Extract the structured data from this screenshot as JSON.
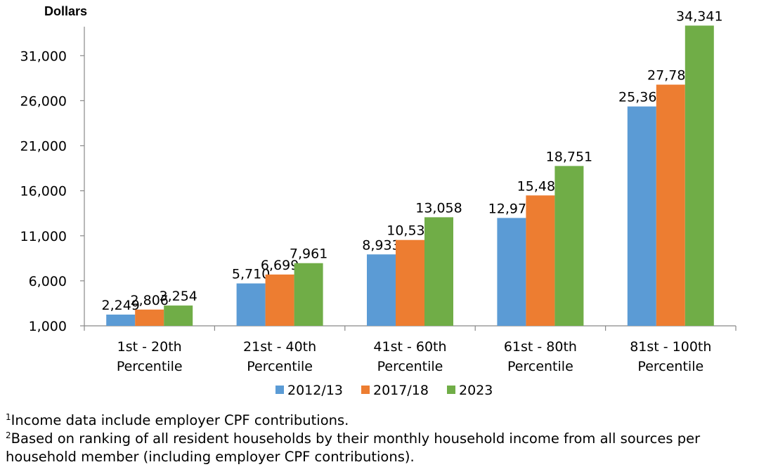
{
  "chart_data": {
    "type": "bar",
    "ylabel": "Dollars",
    "categories": [
      [
        "1st - 20th",
        "Percentile"
      ],
      [
        "21st - 40th",
        "Percentile"
      ],
      [
        "41st - 60th",
        "Percentile"
      ],
      [
        "61st - 80th",
        "Percentile"
      ],
      [
        "81st - 100th",
        "Percentile"
      ]
    ],
    "series": [
      {
        "name": "2012/13",
        "color": "#5b9bd5",
        "values": [
          2249,
          5710,
          8933,
          12979,
          25361
        ]
      },
      {
        "name": "2017/18",
        "color": "#ed7d31",
        "values": [
          2806,
          6699,
          10534,
          15482,
          27784
        ]
      },
      {
        "name": "2023",
        "color": "#70ad47",
        "values": [
          3254,
          7961,
          13058,
          18751,
          34341
        ]
      }
    ],
    "ylim": [
      1000,
      35000
    ],
    "yticks": [
      1000,
      6000,
      11000,
      16000,
      21000,
      26000,
      31000
    ],
    "grid": false,
    "legend": "bottom"
  },
  "notes": {
    "note1_marker": "1",
    "note1_text": "Income data include employer CPF contributions.",
    "note2_marker": "2",
    "note2_text": "Based on ranking of all resident households by their monthly household income from all sources per household member (including employer CPF contributions)."
  }
}
